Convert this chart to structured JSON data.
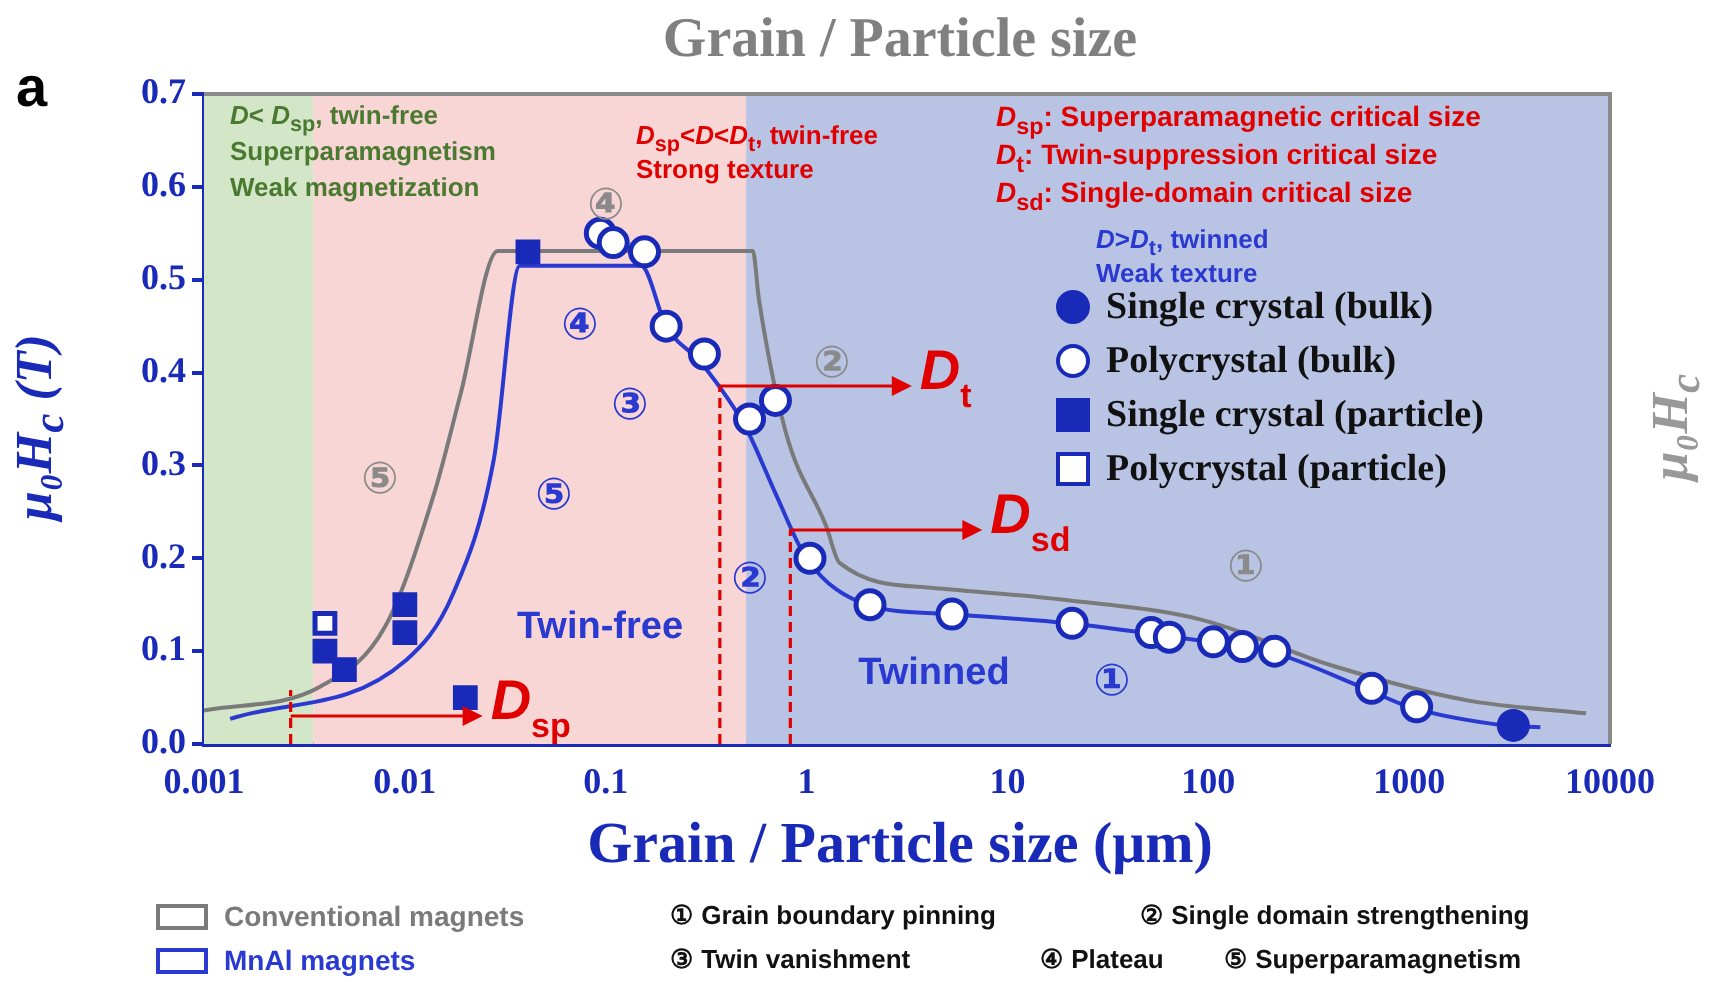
{
  "chart_data": {
    "type": "scatter",
    "title": "Grain / Particle size",
    "xlabel": "Grain / Particle size (μm)",
    "ylabel": "μ₀H$_{c}$ (T)",
    "y2label": "μ₀H$_{c}$",
    "log": "x",
    "grid": false,
    "legend": "bottom left",
    "xlim": [
      0.001,
      10000
    ],
    "xticks": [
      0.001,
      0.01,
      0.1,
      1,
      10,
      100,
      1000,
      10000
    ],
    "ylim": [
      0,
      0.7
    ],
    "yticks": [
      {
        "value": 0,
        "label": "0.0"
      },
      {
        "value": 0.1,
        "label": "0.1"
      },
      {
        "value": 0.2,
        "label": "0.2"
      },
      {
        "value": 0.3,
        "label": "0.3"
      },
      {
        "value": 0.4,
        "label": "0.4"
      },
      {
        "value": 0.5,
        "label": "0.5"
      },
      {
        "value": 0.6,
        "label": "0.6"
      },
      {
        "value": 0.7,
        "label": "0.7"
      }
    ],
    "bands": [
      {
        "axis": "x",
        "from": 0.001,
        "to": 0.0035,
        "color": "#d3e6c8"
      },
      {
        "axis": "x",
        "from": 0.0035,
        "to": 0.5,
        "color": "#f8d6d6"
      },
      {
        "axis": "x",
        "from": 0.5,
        "to": 10000,
        "color": "#b9c4e4"
      }
    ],
    "series": [
      {
        "name": "Conventional magnets",
        "type": "line",
        "color": "#7a7a7a",
        "x": [
          0.001,
          0.0038,
          0.008,
          0.014,
          0.019,
          0.029,
          0.54,
          0.58,
          0.79,
          1.25,
          1.46,
          4.3,
          19.6,
          92,
          420,
          1950,
          7600
        ],
        "values": [
          0.036,
          0.062,
          0.127,
          0.27,
          0.378,
          0.531,
          0.531,
          0.478,
          0.335,
          0.235,
          0.195,
          0.168,
          0.155,
          0.134,
          0.084,
          0.047,
          0.033
        ]
      },
      {
        "name": "MnAl magnets",
        "type": "line",
        "color": "#2a3ad0",
        "x": [
          0.00135,
          0.0101,
          0.0174,
          0.0277,
          0.0374,
          0.15,
          0.2,
          0.3,
          0.5,
          0.7,
          1.0,
          2,
          5,
          20,
          100,
          200,
          600,
          1000,
          3000,
          4500
        ],
        "values": [
          0.027,
          0.09,
          0.162,
          0.306,
          0.515,
          0.515,
          0.45,
          0.41,
          0.34,
          0.27,
          0.2,
          0.15,
          0.14,
          0.13,
          0.11,
          0.1,
          0.06,
          0.04,
          0.02,
          0.018
        ]
      },
      {
        "name": "Single crystal (bulk)",
        "marker": "circle",
        "color": "#1a2ab8",
        "x": [
          3300
        ],
        "values": [
          0.02
        ]
      },
      {
        "name": "Polycrystal (bulk)",
        "marker": "circle",
        "color": "#ffffff",
        "x": [
          0.094,
          0.109,
          0.156,
          0.2,
          0.31,
          0.52,
          0.7,
          1.04,
          2.07,
          5.3,
          21,
          52,
          64,
          106,
          148,
          214,
          650,
          1090
        ],
        "values": [
          0.55,
          0.54,
          0.53,
          0.45,
          0.42,
          0.35,
          0.37,
          0.2,
          0.15,
          0.14,
          0.13,
          0.12,
          0.115,
          0.11,
          0.105,
          0.1,
          0.06,
          0.04
        ]
      },
      {
        "name": "Single crystal (particle)",
        "marker": "square",
        "color": "#1a2ab8",
        "x": [
          0.041,
          0.01,
          0.01,
          0.004,
          0.005,
          0.02
        ],
        "values": [
          0.53,
          0.15,
          0.12,
          0.1,
          0.08,
          0.05
        ]
      },
      {
        "name": "Polycrystal (particle)",
        "marker": "square",
        "color": "#ffffff",
        "x": [
          0.004
        ],
        "values": [
          0.13
        ]
      }
    ],
    "annotations": [
      "a",
      "D< D$_{sp}$, twin-free",
      "Superparamagnetism",
      "Weak magnetization",
      "D$_{sp}$<D<D$_{t}$, twin-free",
      "Strong texture",
      "D$_{sp}$: Superparamagnetic critical size",
      "D$_{t}$: Twin-suppression critical size",
      "D$_{sd}$: Single-domain critical size",
      "D>D$_{t}$, twinned",
      "Weak texture",
      "① Grain boundary pinning",
      "② Single domain strengthening",
      "③ Twin vanishment",
      "④ Plateau",
      "⑤ Superparamagnetism",
      "④",
      "②",
      "⑤",
      "①",
      "④",
      "③",
      "⑤",
      "②",
      "①",
      "Twin-free",
      "Twinned"
    ],
    "ref_lines": [
      {
        "axis": "x",
        "value": 0.0027,
        "label": "D$_{sp}$",
        "color": "#e00000",
        "line_style": "dashed"
      },
      {
        "axis": "x",
        "value": 0.37,
        "label": "D$_{t}$",
        "color": "#e00000",
        "line_style": "dashed"
      },
      {
        "axis": "x",
        "value": 0.83,
        "label": "D$_{sd}$",
        "color": "#e00000",
        "line_style": "dashed"
      }
    ]
  }
}
